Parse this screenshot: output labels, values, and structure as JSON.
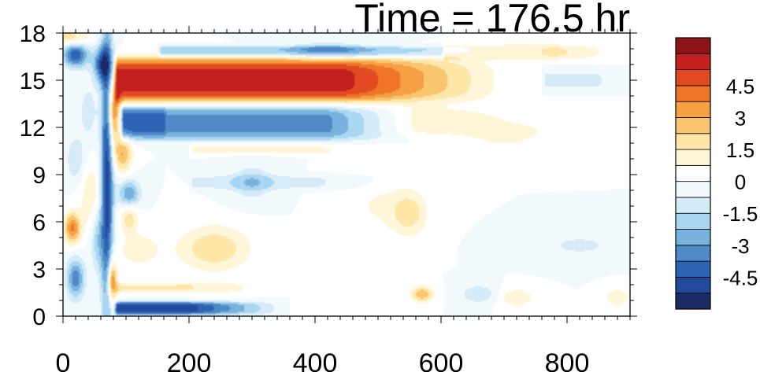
{
  "chart_data": {
    "type": "heatmap",
    "title": "Time = 176.5 hr",
    "xlabel": "",
    "ylabel": "",
    "xlim": [
      0,
      900
    ],
    "ylim": [
      0,
      18
    ],
    "x_ticks": [
      0,
      200,
      400,
      600,
      800
    ],
    "x_tick_labels": [
      "0",
      "200",
      "400",
      "600",
      "800"
    ],
    "y_ticks": [
      0,
      3,
      6,
      9,
      12,
      15,
      18
    ],
    "y_tick_labels": [
      "0",
      "3",
      "6",
      "9",
      "12",
      "15",
      "18"
    ],
    "grid": false,
    "colorbar": {
      "placement": "right",
      "levels": [
        -5.25,
        -4.5,
        -3.75,
        -3,
        -2.25,
        -1.5,
        -0.75,
        0,
        0.75,
        1.5,
        2.25,
        3,
        3.75,
        4.5,
        5.25
      ],
      "labels": [
        {
          "value": 4.5,
          "text": "4.5"
        },
        {
          "value": 3,
          "text": "3"
        },
        {
          "value": 1.5,
          "text": "1.5"
        },
        {
          "value": 0,
          "text": "0"
        },
        {
          "value": -1.5,
          "text": "-1.5"
        },
        {
          "value": -3,
          "text": "-3"
        },
        {
          "value": -4.5,
          "text": "-4.5"
        }
      ],
      "colors": [
        "#1a2b63",
        "#23499a",
        "#2f64b5",
        "#4f8ac6",
        "#79b3dd",
        "#a9d6f1",
        "#d5ecf8",
        "#f2f9fd",
        "#ffffff",
        "#fff5d8",
        "#fde6a8",
        "#f9c56e",
        "#f5a043",
        "#ef7628",
        "#e14a22",
        "#c41f1f",
        "#8f1418"
      ]
    },
    "features": [
      {
        "shape": "band",
        "x0": 80,
        "x1": 690,
        "y_center": 15.0,
        "y_half_width": 1.2,
        "peak": 5.5,
        "taper_from": 450,
        "x_end": 720
      },
      {
        "shape": "band",
        "x0": 90,
        "x1": 520,
        "y_center": 12.3,
        "y_half_width": 0.9,
        "peak": -4.2,
        "taper_from": 420,
        "x_end": 560
      },
      {
        "shape": "band",
        "x0": 160,
        "x1": 900,
        "y_center": 12.4,
        "y_half_width": 0.8,
        "peak": 1.0,
        "taper_from": 600,
        "x_end": 900
      },
      {
        "shape": "band",
        "x0": 150,
        "x1": 800,
        "y_center": 16.8,
        "y_half_width": 0.3,
        "peak": -2.2,
        "taper_from": 500,
        "x_end": 800
      },
      {
        "shape": "band",
        "x0": 80,
        "x1": 330,
        "y_center": 0.5,
        "y_half_width": 0.35,
        "peak": -5.0,
        "taper_from": 200,
        "x_end": 360
      },
      {
        "shape": "band",
        "x0": 80,
        "x1": 340,
        "y_center": 1.8,
        "y_half_width": 0.3,
        "peak": 1.5,
        "taper_from": 200,
        "x_end": 360
      },
      {
        "shape": "band",
        "x0": 600,
        "x1": 900,
        "y_center": 16.8,
        "y_half_width": 0.4,
        "peak": 1.8,
        "taper_from": 780,
        "x_end": 900
      },
      {
        "shape": "band",
        "x0": 760,
        "x1": 900,
        "y_center": 15.0,
        "y_half_width": 0.5,
        "peak": -1.0,
        "taper_from": 840,
        "x_end": 900
      },
      {
        "shape": "band",
        "x0": 200,
        "x1": 550,
        "y_center": 10.6,
        "y_half_width": 0.3,
        "peak": 0.9,
        "taper_from": 400,
        "x_end": 560
      },
      {
        "shape": "band",
        "x0": 200,
        "x1": 520,
        "y_center": 8.5,
        "y_half_width": 0.4,
        "peak": -0.9,
        "taper_from": 400,
        "x_end": 540
      },
      {
        "shape": "blob",
        "x": 70,
        "y": 9.0,
        "sx": 7,
        "sy": 7.0,
        "peak": -5.0
      },
      {
        "shape": "blob",
        "x": 78,
        "y": 2.2,
        "sx": 5,
        "sy": 0.9,
        "peak": 5.0
      },
      {
        "shape": "blob",
        "x": 80,
        "y": 13.0,
        "sx": 6,
        "sy": 1.5,
        "peak": 4.5
      },
      {
        "shape": "blob",
        "x": 62,
        "y": 16.0,
        "sx": 10,
        "sy": 0.8,
        "peak": -4.0
      },
      {
        "shape": "blob",
        "x": 20,
        "y": 16.6,
        "sx": 14,
        "sy": 0.55,
        "peak": -4.5
      },
      {
        "shape": "blob",
        "x": 12,
        "y": 17.7,
        "sx": 22,
        "sy": 0.35,
        "peak": 2.2
      },
      {
        "shape": "blob",
        "x": 15,
        "y": 5.6,
        "sx": 9,
        "sy": 0.7,
        "peak": 4.0
      },
      {
        "shape": "blob",
        "x": 20,
        "y": 2.4,
        "sx": 10,
        "sy": 0.9,
        "peak": -3.5
      },
      {
        "shape": "blob",
        "x": 20,
        "y": 10.0,
        "sx": 10,
        "sy": 1.0,
        "peak": -1.5
      },
      {
        "shape": "blob",
        "x": 45,
        "y": 7.5,
        "sx": 12,
        "sy": 1.5,
        "peak": 1.5
      },
      {
        "shape": "blob",
        "x": 40,
        "y": 13.0,
        "sx": 10,
        "sy": 1.2,
        "peak": -1.2
      },
      {
        "shape": "blob",
        "x": 55,
        "y": 5.0,
        "sx": 8,
        "sy": 1.5,
        "peak": -2.0
      },
      {
        "shape": "blob",
        "x": 105,
        "y": 7.8,
        "sx": 12,
        "sy": 0.6,
        "peak": -3.0
      },
      {
        "shape": "blob",
        "x": 95,
        "y": 10.3,
        "sx": 10,
        "sy": 0.8,
        "peak": 3.0
      },
      {
        "shape": "blob",
        "x": 105,
        "y": 6.2,
        "sx": 10,
        "sy": 0.6,
        "peak": 2.0
      },
      {
        "shape": "blob",
        "x": 120,
        "y": 4.2,
        "sx": 25,
        "sy": 0.8,
        "peak": 1.2
      },
      {
        "shape": "blob",
        "x": 240,
        "y": 4.3,
        "sx": 40,
        "sy": 1.0,
        "peak": 2.2
      },
      {
        "shape": "blob",
        "x": 300,
        "y": 8.5,
        "sx": 25,
        "sy": 0.8,
        "peak": -1.5
      },
      {
        "shape": "blob",
        "x": 550,
        "y": 6.5,
        "sx": 20,
        "sy": 1.0,
        "peak": 1.8
      },
      {
        "shape": "blob",
        "x": 500,
        "y": 7.0,
        "sx": 40,
        "sy": 1.2,
        "peak": 0.8
      },
      {
        "shape": "blob",
        "x": 570,
        "y": 1.4,
        "sx": 12,
        "sy": 0.35,
        "peak": 3.0
      },
      {
        "shape": "blob",
        "x": 660,
        "y": 1.4,
        "sx": 20,
        "sy": 0.4,
        "peak": -1.5
      },
      {
        "shape": "blob",
        "x": 720,
        "y": 1.2,
        "sx": 20,
        "sy": 0.4,
        "peak": 1.5
      },
      {
        "shape": "blob",
        "x": 880,
        "y": 1.2,
        "sx": 14,
        "sy": 0.4,
        "peak": 1.5
      },
      {
        "shape": "blob",
        "x": 420,
        "y": 17.0,
        "sx": 40,
        "sy": 0.3,
        "peak": -1.8
      },
      {
        "shape": "blob",
        "x": 820,
        "y": 4.5,
        "sx": 50,
        "sy": 0.6,
        "peak": -0.9
      },
      {
        "shape": "blob",
        "x": 700,
        "y": 11.2,
        "sx": 60,
        "sy": 0.6,
        "peak": 0.8
      }
    ]
  }
}
